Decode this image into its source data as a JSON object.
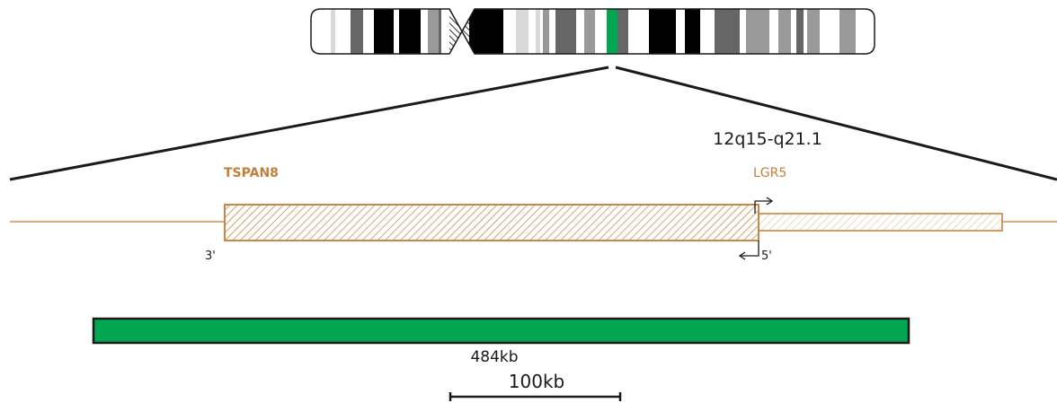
{
  "region_label": "12q15-q21.1",
  "genes": [
    {
      "name": "TSPAN8",
      "bold": true,
      "strand_end_label": "3'"
    },
    {
      "name": "LGR5",
      "bold": false,
      "strand_end_label": "5'"
    }
  ],
  "deletion_size": "484kb",
  "scale_bar_label": "100kb",
  "colors": {
    "gene": "#c17f3a",
    "highlight": "#00a650",
    "outline": "#1a1a1a",
    "band_dark": "#000000",
    "band_mid": "#666666",
    "band_light": "#999999",
    "band_pale": "#d9d9d9"
  }
}
